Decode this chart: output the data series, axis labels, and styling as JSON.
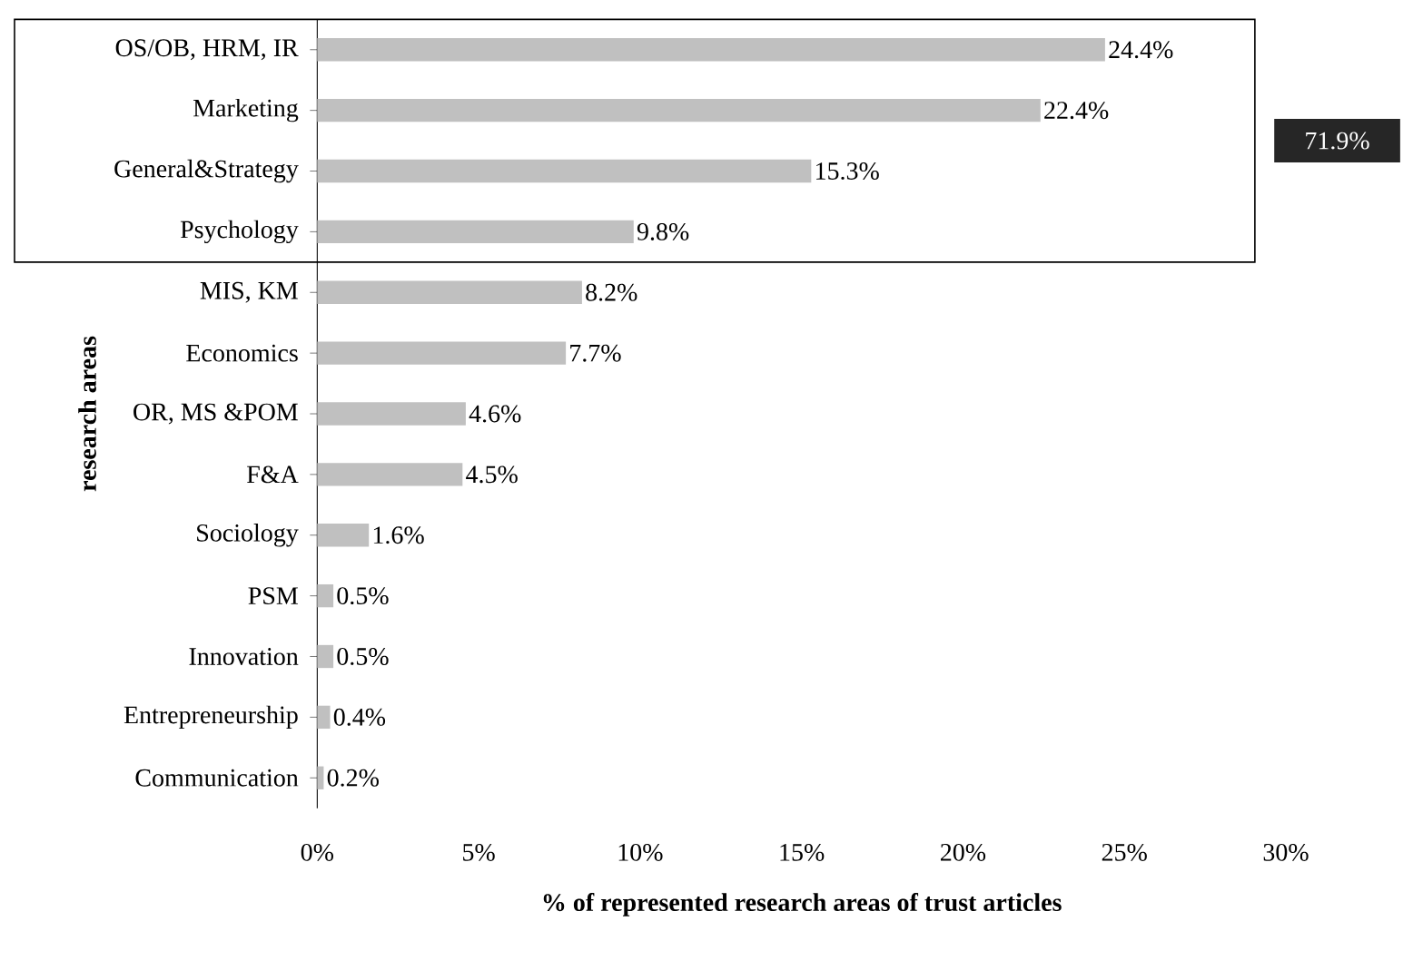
{
  "chart_data": {
    "type": "bar",
    "orientation": "horizontal",
    "xlabel": "% of represented research areas of trust articles",
    "ylabel": "research areas",
    "categories": [
      "OS/OB, HRM, IR",
      "Marketing",
      "General&Strategy",
      "Psychology",
      "MIS, KM",
      "Economics",
      "OR, MS &POM",
      "F&A",
      "Sociology",
      "PSM",
      "Innovation",
      "Entrepreneurship",
      "Communication"
    ],
    "values": [
      24.4,
      22.4,
      15.3,
      9.8,
      8.2,
      7.7,
      4.6,
      4.5,
      1.6,
      0.5,
      0.5,
      0.4,
      0.2
    ],
    "value_labels": [
      "24.4%",
      "22.4%",
      "15.3%",
      "9.8%",
      "8.2%",
      "7.7%",
      "4.6%",
      "4.5%",
      "1.6%",
      "0.5%",
      "0.5%",
      "0.4%",
      "0.2%"
    ],
    "color": "#c0c0c0",
    "xlim": [
      0,
      30
    ],
    "xticks": [
      {
        "value": 0,
        "label": "0%"
      },
      {
        "value": 5,
        "label": "5%"
      },
      {
        "value": 10,
        "label": "10%"
      },
      {
        "value": 15,
        "label": "15%"
      },
      {
        "value": 20,
        "label": "20%"
      },
      {
        "value": 25,
        "label": "25%"
      },
      {
        "value": 30,
        "label": "30%"
      }
    ],
    "annotations": [
      "71.9%"
    ],
    "grid": false
  }
}
